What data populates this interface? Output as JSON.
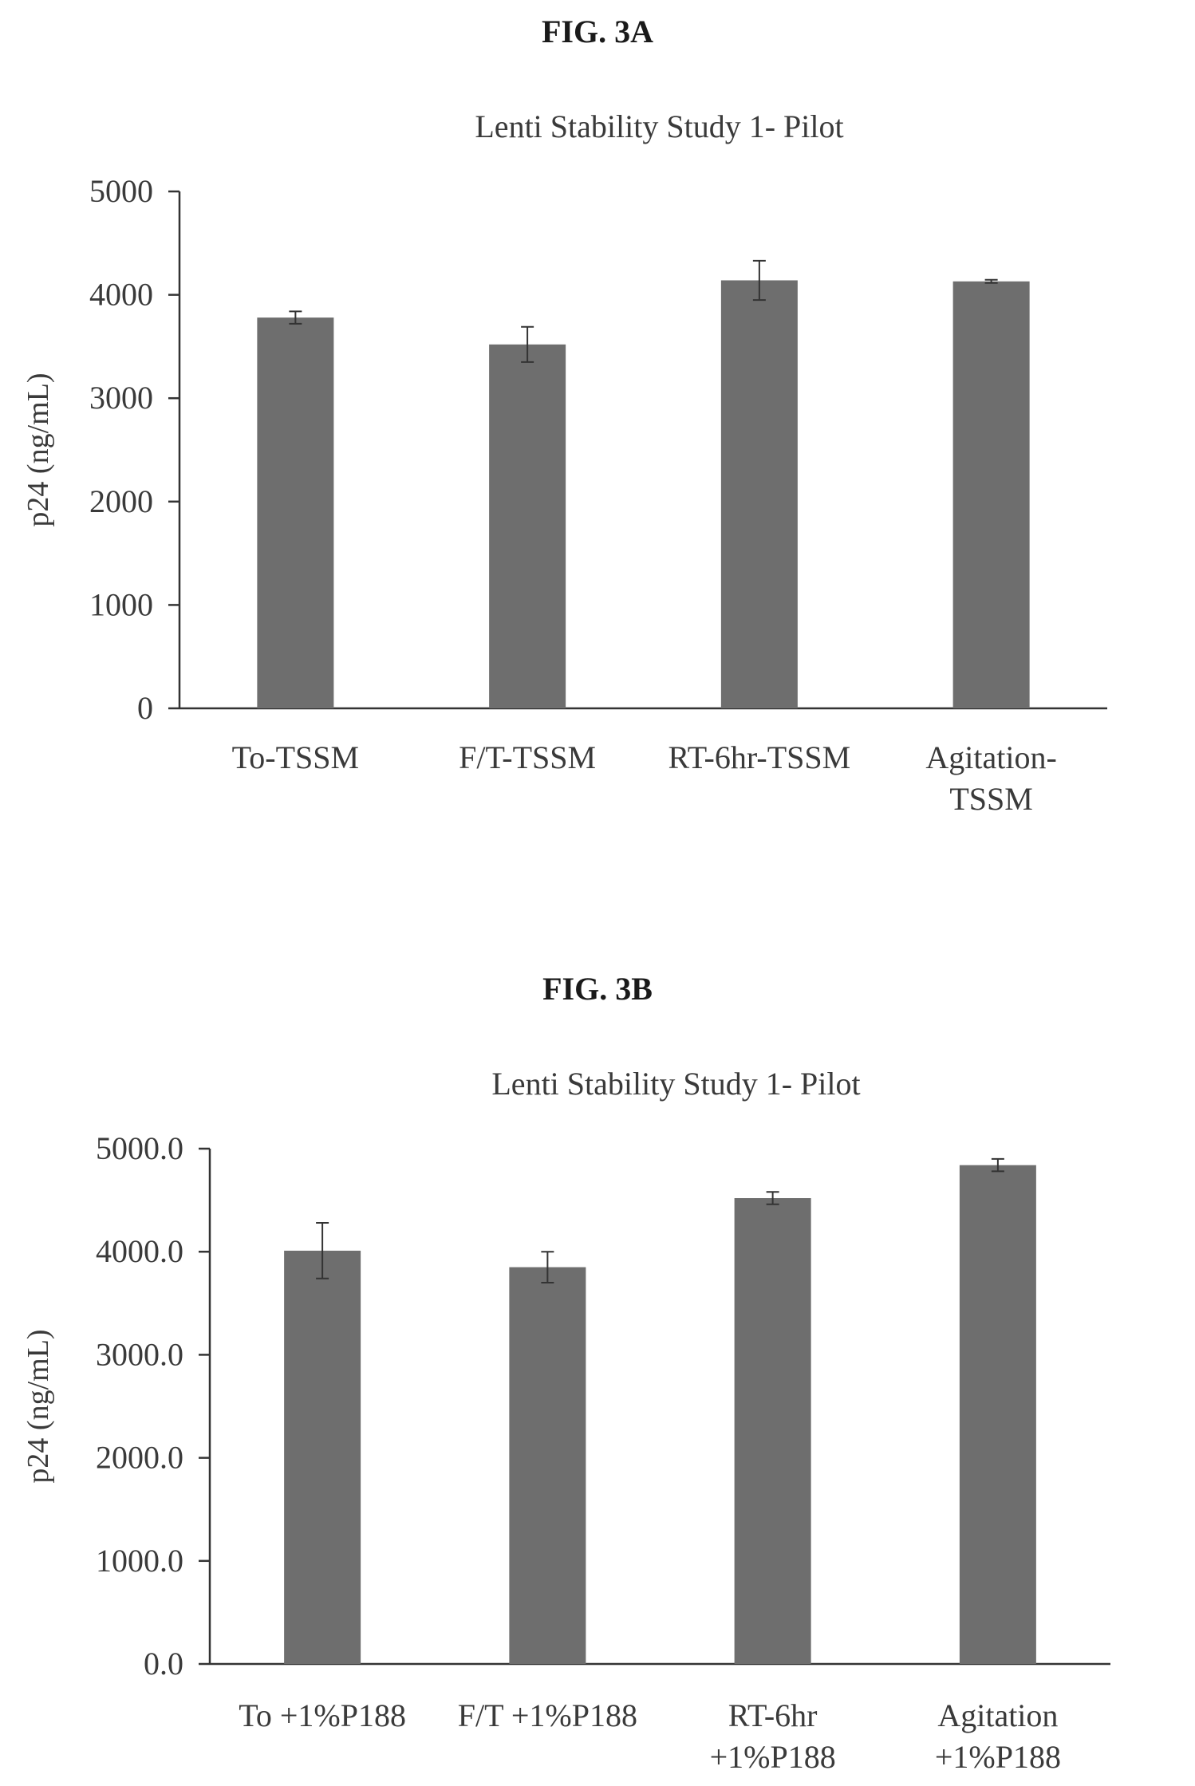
{
  "figures": [
    {
      "label": "FIG. 3A",
      "chart_data": {
        "type": "bar",
        "title": "Lenti Stability Study 1- Pilot",
        "xlabel": "",
        "ylabel": "p24 (ng/mL)",
        "ylim": [
          0,
          5000
        ],
        "yticks": [
          "0",
          "1000",
          "2000",
          "3000",
          "4000",
          "5000"
        ],
        "categories": [
          [
            "To-TSSM"
          ],
          [
            "F/T-TSSM"
          ],
          [
            "RT-6hr-TSSM"
          ],
          [
            "Agitation-",
            "TSSM"
          ]
        ],
        "values": [
          3780,
          3520,
          4140,
          4130
        ],
        "errors": [
          60,
          170,
          190,
          15
        ],
        "grid": false,
        "bar_color": "#6e6e6e"
      }
    },
    {
      "label": "FIG. 3B",
      "chart_data": {
        "type": "bar",
        "title": "Lenti Stability Study 1- Pilot",
        "xlabel": "",
        "ylabel": "p24 (ng/mL)",
        "ylim": [
          0,
          5000
        ],
        "yticks": [
          "0.0",
          "1000.0",
          "2000.0",
          "3000.0",
          "4000.0",
          "5000.0"
        ],
        "categories": [
          [
            "To +1%P188"
          ],
          [
            "F/T +1%P188"
          ],
          [
            "RT-6hr",
            "+1%P188"
          ],
          [
            "Agitation",
            "+1%P188"
          ]
        ],
        "values": [
          4010,
          3850,
          4520,
          4840
        ],
        "errors": [
          270,
          150,
          60,
          60
        ],
        "grid": false,
        "bar_color": "#6e6e6e"
      }
    }
  ]
}
